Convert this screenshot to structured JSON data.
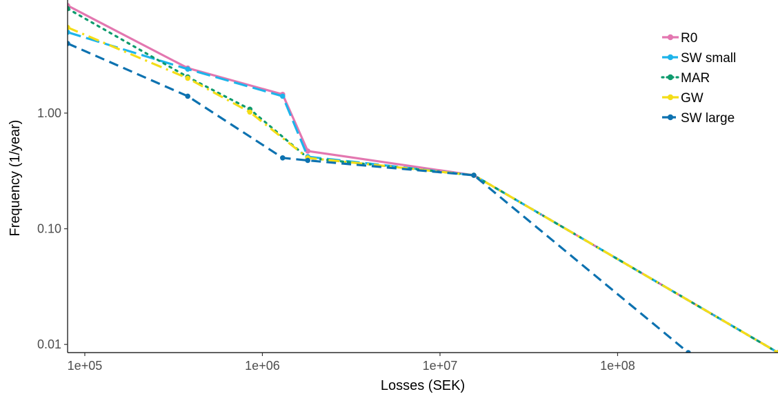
{
  "chart_data": {
    "type": "line",
    "xlabel": "Losses (SEK)",
    "ylabel": "Frequency (1/year)",
    "xscale": "log",
    "yscale": "log",
    "xlim": [
      80000,
      800000000
    ],
    "ylim": [
      0.0085,
      9.5
    ],
    "xticks": [
      100000,
      1000000,
      10000000,
      100000000
    ],
    "xtick_labels": [
      "1e+05",
      "1e+06",
      "1e+07",
      "1e+08"
    ],
    "yticks": [
      0.01,
      0.1,
      1
    ],
    "ytick_labels": [
      "0.01",
      "0.10",
      "1.00"
    ],
    "grid": false,
    "legend_position": "top-right",
    "series": [
      {
        "name": "R0",
        "color": "#e377b0",
        "dash": "solid",
        "x": [
          80000,
          380000,
          1300000,
          1800000,
          15500000,
          800000000
        ],
        "y": [
          8.5,
          2.45,
          1.45,
          0.47,
          0.29,
          0.0085
        ]
      },
      {
        "name": "SW small",
        "color": "#1eb4ea",
        "dash": "longdash",
        "x": [
          80000,
          380000,
          1300000,
          1800000,
          15500000,
          800000000
        ],
        "y": [
          5.0,
          2.4,
          1.4,
          0.42,
          0.29,
          0.0085
        ]
      },
      {
        "name": "MAR",
        "color": "#0f9b6e",
        "dash": "dotted",
        "x": [
          80000,
          380000,
          850000,
          1800000,
          15500000,
          800000000
        ],
        "y": [
          8.0,
          2.05,
          1.08,
          0.41,
          0.29,
          0.0085
        ]
      },
      {
        "name": "GW",
        "color": "#f4dd17",
        "dash": "dotdash",
        "x": [
          80000,
          380000,
          850000,
          1800000,
          15500000,
          800000000
        ],
        "y": [
          5.5,
          2.0,
          1.02,
          0.41,
          0.29,
          0.0085
        ]
      },
      {
        "name": "SW large",
        "color": "#0d72b0",
        "dash": "dashed",
        "x": [
          80000,
          380000,
          1300000,
          1800000,
          15500000,
          250000000
        ],
        "y": [
          4.0,
          1.4,
          0.41,
          0.39,
          0.29,
          0.0085
        ]
      }
    ]
  }
}
